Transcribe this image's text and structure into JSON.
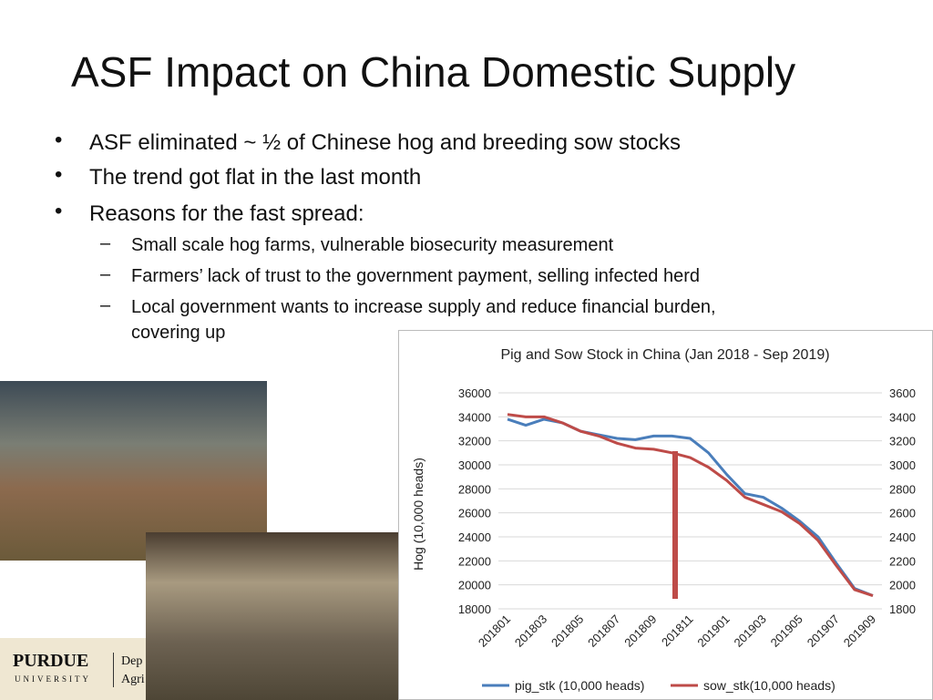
{
  "slide": {
    "title": "ASF Impact on China Domestic Supply",
    "bullets": [
      "ASF eliminated ~ ½ of Chinese hog and breeding sow stocks",
      "The trend got flat in the last month",
      "Reasons for the fast spread:"
    ],
    "sub_bullets": [
      "Small scale hog farms, vulnerable biosecurity measurement",
      "Farmers’ lack of trust to the government payment, selling infected herd",
      "Local government wants to increase supply and reduce financial burden,",
      "covering up"
    ],
    "logo": [
      "PURDUE",
      "UNIVERSITY",
      "Dep",
      "Agri"
    ]
  },
  "chart_data": {
    "type": "line",
    "title": "Pig and Sow Stock in China (Jan 2018 - Sep 2019)",
    "y_label": "Hog (10,000 heads)",
    "categories": [
      "201801",
      null,
      "201803",
      null,
      "201805",
      null,
      "201807",
      null,
      "201809",
      null,
      "201811",
      null,
      "201901",
      null,
      "201903",
      null,
      "201905",
      null,
      "201907",
      null,
      "201909"
    ],
    "series": [
      {
        "name": "pig_stk (10,000 heads)",
        "color": "#4a7ebb",
        "values": [
          33800,
          33300,
          33800,
          33500,
          32800,
          32500,
          32200,
          32100,
          32400,
          32400,
          32200,
          31000,
          29200,
          27600,
          27300,
          26400,
          25300,
          24000,
          21800,
          19700,
          19100
        ]
      },
      {
        "name": "sow_stk(10,000 heads)",
        "color": "#be4b48",
        "axis": "y2",
        "values": [
          3420,
          3400,
          3400,
          3350,
          3280,
          3240,
          3180,
          3140,
          3130,
          3100,
          3060,
          2980,
          2870,
          2730,
          2670,
          2610,
          2510,
          2370,
          2160,
          1960,
          1910
        ]
      }
    ],
    "ylim": [
      18000,
      36000
    ],
    "yticks": [
      18000,
      20000,
      22000,
      24000,
      26000,
      28000,
      30000,
      32000,
      34000,
      36000
    ],
    "y2lim": [
      1800,
      3600
    ],
    "y2ticks": [
      1800,
      2000,
      2200,
      2400,
      2600,
      2800,
      3000,
      3200,
      3400,
      3600
    ],
    "grid": true,
    "legend": "bottom"
  }
}
